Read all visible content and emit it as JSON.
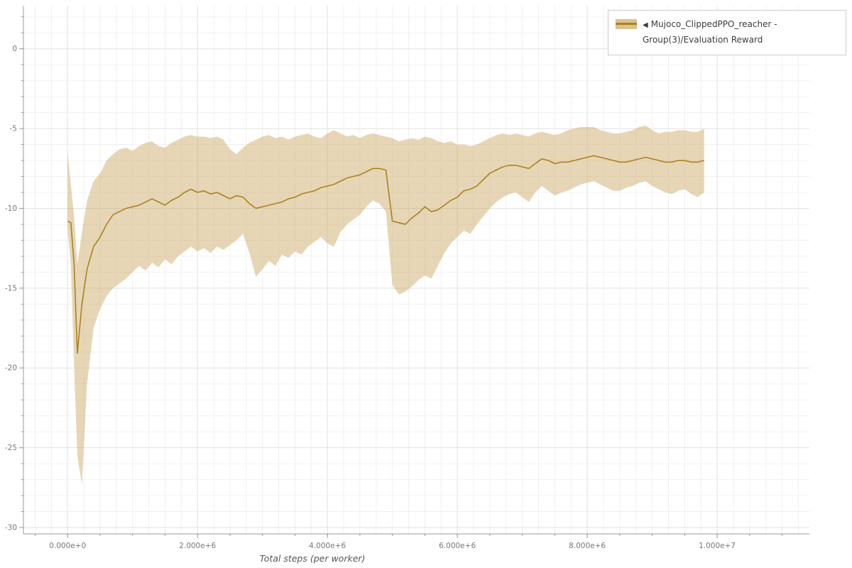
{
  "window": {
    "background": "#ffffff"
  },
  "legend": {
    "marker": "◀",
    "label": "Mujoco_ClippedPPO_reacher - Group(3)/Evaluation Reward"
  },
  "chart_data": {
    "type": "line",
    "title": "",
    "xlabel": "Total steps (per worker)",
    "ylabel": "",
    "series_name": "Mujoco_ClippedPPO_reacher - Group(3)/Evaluation Reward",
    "legend_position": "top-right",
    "grid": true,
    "xlim_millions": [
      -0.68,
      11.42
    ],
    "ylim": [
      -30.4,
      2.7
    ],
    "x_ticks_millions": [
      0,
      2,
      4,
      6,
      8,
      10
    ],
    "x_tick_labels": [
      "0.000e+0",
      "2.000e+6",
      "4.000e+6",
      "6.000e+6",
      "8.000e+6",
      "1.000e+7"
    ],
    "y_ticks": [
      0,
      -5,
      -10,
      -15,
      -20,
      -25,
      -30
    ],
    "y_tick_labels": [
      "0",
      "-5",
      "-10",
      "-15",
      "-20",
      "-25",
      "-30"
    ],
    "x_millions": [
      0,
      0.05,
      0.1,
      0.15,
      0.22,
      0.3,
      0.4,
      0.5,
      0.6,
      0.7,
      0.8,
      0.9,
      1.0,
      1.1,
      1.2,
      1.3,
      1.4,
      1.5,
      1.6,
      1.7,
      1.8,
      1.9,
      2.0,
      2.1,
      2.2,
      2.3,
      2.4,
      2.5,
      2.6,
      2.7,
      2.8,
      2.9,
      3.0,
      3.1,
      3.2,
      3.3,
      3.4,
      3.5,
      3.6,
      3.7,
      3.8,
      3.9,
      4.0,
      4.1,
      4.2,
      4.3,
      4.4,
      4.5,
      4.6,
      4.7,
      4.8,
      4.9,
      5.0,
      5.1,
      5.2,
      5.3,
      5.4,
      5.5,
      5.6,
      5.7,
      5.8,
      5.9,
      6.0,
      6.1,
      6.2,
      6.3,
      6.4,
      6.5,
      6.6,
      6.7,
      6.8,
      6.9,
      7.0,
      7.1,
      7.2,
      7.3,
      7.4,
      7.5,
      7.6,
      7.7,
      7.8,
      7.9,
      8.0,
      8.1,
      8.2,
      8.3,
      8.4,
      8.5,
      8.6,
      8.7,
      8.8,
      8.9,
      9.0,
      9.1,
      9.2,
      9.3,
      9.4,
      9.5,
      9.6,
      9.7,
      9.8
    ],
    "mean": [
      -10.8,
      -10.9,
      -13.5,
      -19.1,
      -16.0,
      -13.8,
      -12.4,
      -11.8,
      -11.0,
      -10.4,
      -10.2,
      -10.0,
      -9.9,
      -9.8,
      -9.6,
      -9.4,
      -9.6,
      -9.8,
      -9.5,
      -9.3,
      -9.0,
      -8.8,
      -9.0,
      -8.9,
      -9.1,
      -9.0,
      -9.2,
      -9.4,
      -9.2,
      -9.3,
      -9.7,
      -10.0,
      -9.9,
      -9.8,
      -9.7,
      -9.6,
      -9.4,
      -9.3,
      -9.1,
      -9.0,
      -8.9,
      -8.7,
      -8.6,
      -8.5,
      -8.3,
      -8.1,
      -8.0,
      -7.9,
      -7.7,
      -7.5,
      -7.5,
      -7.6,
      -10.8,
      -10.9,
      -11.0,
      -10.6,
      -10.3,
      -9.9,
      -10.2,
      -10.1,
      -9.8,
      -9.5,
      -9.3,
      -8.9,
      -8.8,
      -8.6,
      -8.2,
      -7.8,
      -7.6,
      -7.4,
      -7.3,
      -7.3,
      -7.4,
      -7.5,
      -7.2,
      -6.9,
      -7.0,
      -7.2,
      -7.1,
      -7.1,
      -7.0,
      -6.9,
      -6.8,
      -6.7,
      -6.8,
      -6.9,
      -7.0,
      -7.1,
      -7.1,
      -7.0,
      -6.9,
      -6.8,
      -6.9,
      -7.0,
      -7.1,
      -7.1,
      -7.0,
      -7.0,
      -7.1,
      -7.1,
      -7.0
    ],
    "band_upper": [
      -6.5,
      -8.5,
      -10.5,
      -13.5,
      -11.5,
      -9.5,
      -8.3,
      -7.8,
      -7.0,
      -6.6,
      -6.3,
      -6.2,
      -6.4,
      -6.1,
      -5.9,
      -5.8,
      -6.1,
      -6.2,
      -5.9,
      -5.7,
      -5.5,
      -5.4,
      -5.5,
      -5.5,
      -5.6,
      -5.5,
      -5.7,
      -6.3,
      -6.6,
      -6.2,
      -5.9,
      -5.7,
      -5.5,
      -5.4,
      -5.6,
      -5.5,
      -5.7,
      -5.5,
      -5.4,
      -5.3,
      -5.5,
      -5.6,
      -5.3,
      -5.1,
      -5.3,
      -5.5,
      -5.4,
      -5.6,
      -5.4,
      -5.3,
      -5.4,
      -5.5,
      -5.6,
      -5.8,
      -5.7,
      -5.6,
      -5.7,
      -5.5,
      -5.6,
      -5.8,
      -5.9,
      -5.8,
      -6.0,
      -6.0,
      -6.1,
      -6.0,
      -5.8,
      -5.6,
      -5.4,
      -5.3,
      -5.4,
      -5.3,
      -5.4,
      -5.5,
      -5.3,
      -5.2,
      -5.3,
      -5.4,
      -5.3,
      -5.1,
      -5.0,
      -4.9,
      -4.9,
      -4.9,
      -5.1,
      -5.2,
      -5.3,
      -5.3,
      -5.2,
      -5.1,
      -4.9,
      -4.8,
      -5.1,
      -5.3,
      -5.2,
      -5.2,
      -5.1,
      -5.1,
      -5.2,
      -5.2,
      -5.0
    ],
    "band_lower": [
      -11.2,
      -13.5,
      -20.0,
      -25.5,
      -27.3,
      -21.0,
      -17.5,
      -16.3,
      -15.5,
      -15.0,
      -14.7,
      -14.4,
      -14.0,
      -13.6,
      -13.9,
      -13.4,
      -13.7,
      -13.2,
      -13.5,
      -13.0,
      -12.7,
      -12.4,
      -12.7,
      -12.5,
      -12.8,
      -12.4,
      -12.6,
      -12.3,
      -12.0,
      -11.6,
      -12.8,
      -14.3,
      -13.8,
      -13.3,
      -13.6,
      -12.9,
      -13.1,
      -12.7,
      -12.9,
      -12.4,
      -12.1,
      -11.8,
      -12.2,
      -12.4,
      -11.5,
      -11.0,
      -10.7,
      -10.4,
      -9.9,
      -9.5,
      -9.7,
      -10.2,
      -14.8,
      -15.4,
      -15.2,
      -14.9,
      -14.5,
      -14.2,
      -14.4,
      -13.6,
      -12.8,
      -12.2,
      -11.8,
      -11.4,
      -11.6,
      -11.0,
      -10.5,
      -10.0,
      -9.6,
      -9.3,
      -9.1,
      -9.0,
      -9.3,
      -9.6,
      -9.0,
      -8.6,
      -8.9,
      -9.2,
      -9.0,
      -8.9,
      -8.7,
      -8.5,
      -8.4,
      -8.3,
      -8.5,
      -8.7,
      -8.9,
      -8.9,
      -8.7,
      -8.6,
      -8.4,
      -8.3,
      -8.6,
      -8.8,
      -9.0,
      -9.1,
      -8.9,
      -8.8,
      -9.1,
      -9.3,
      -9.0
    ],
    "colors": {
      "line": "#a9831d",
      "band": "#c9a45e",
      "band_opacity": 0.45,
      "grid_minor": "#f0f0f0",
      "grid_major": "#e1e1e1",
      "axis": "#999999",
      "tick_label": "#777777",
      "axis_label": "#555555"
    }
  }
}
